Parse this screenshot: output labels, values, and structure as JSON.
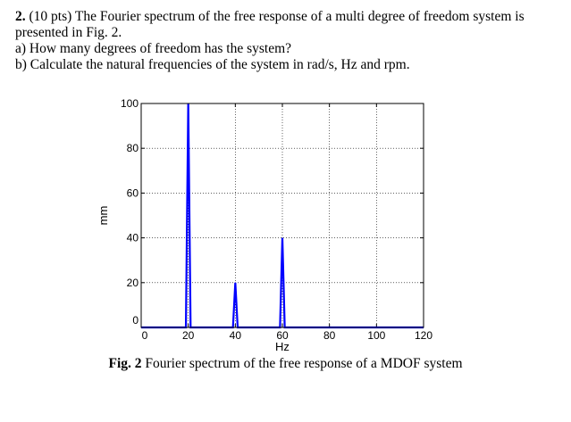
{
  "problem": {
    "number": "2.",
    "intro": "(10 pts) The Fourier spectrum of the free response of a multi degree of freedom system is presented in Fig. 2.",
    "question_a": "a) How many degrees of freedom has the system?",
    "question_b": "b) Calculate the natural frequencies of the system in rad/s, Hz and rpm."
  },
  "caption": {
    "label": "Fig. 2",
    "text": "Fourier spectrum of the free response of a MDOF system"
  },
  "chart_data": {
    "type": "line",
    "xlabel": "Hz",
    "ylabel": "mm",
    "xlim": [
      0,
      120
    ],
    "ylim": [
      0,
      100
    ],
    "xticks": [
      0,
      20,
      40,
      60,
      80,
      100,
      120
    ],
    "yticks": [
      0,
      20,
      40,
      60,
      80,
      100
    ],
    "grid": true,
    "series": [
      {
        "color": "#0000ff",
        "x": [
          0,
          19,
          20,
          21,
          39,
          40,
          41,
          59,
          60,
          61,
          120
        ],
        "y": [
          0,
          0,
          100,
          0,
          0,
          20,
          0,
          0,
          40,
          0,
          0
        ]
      }
    ]
  }
}
